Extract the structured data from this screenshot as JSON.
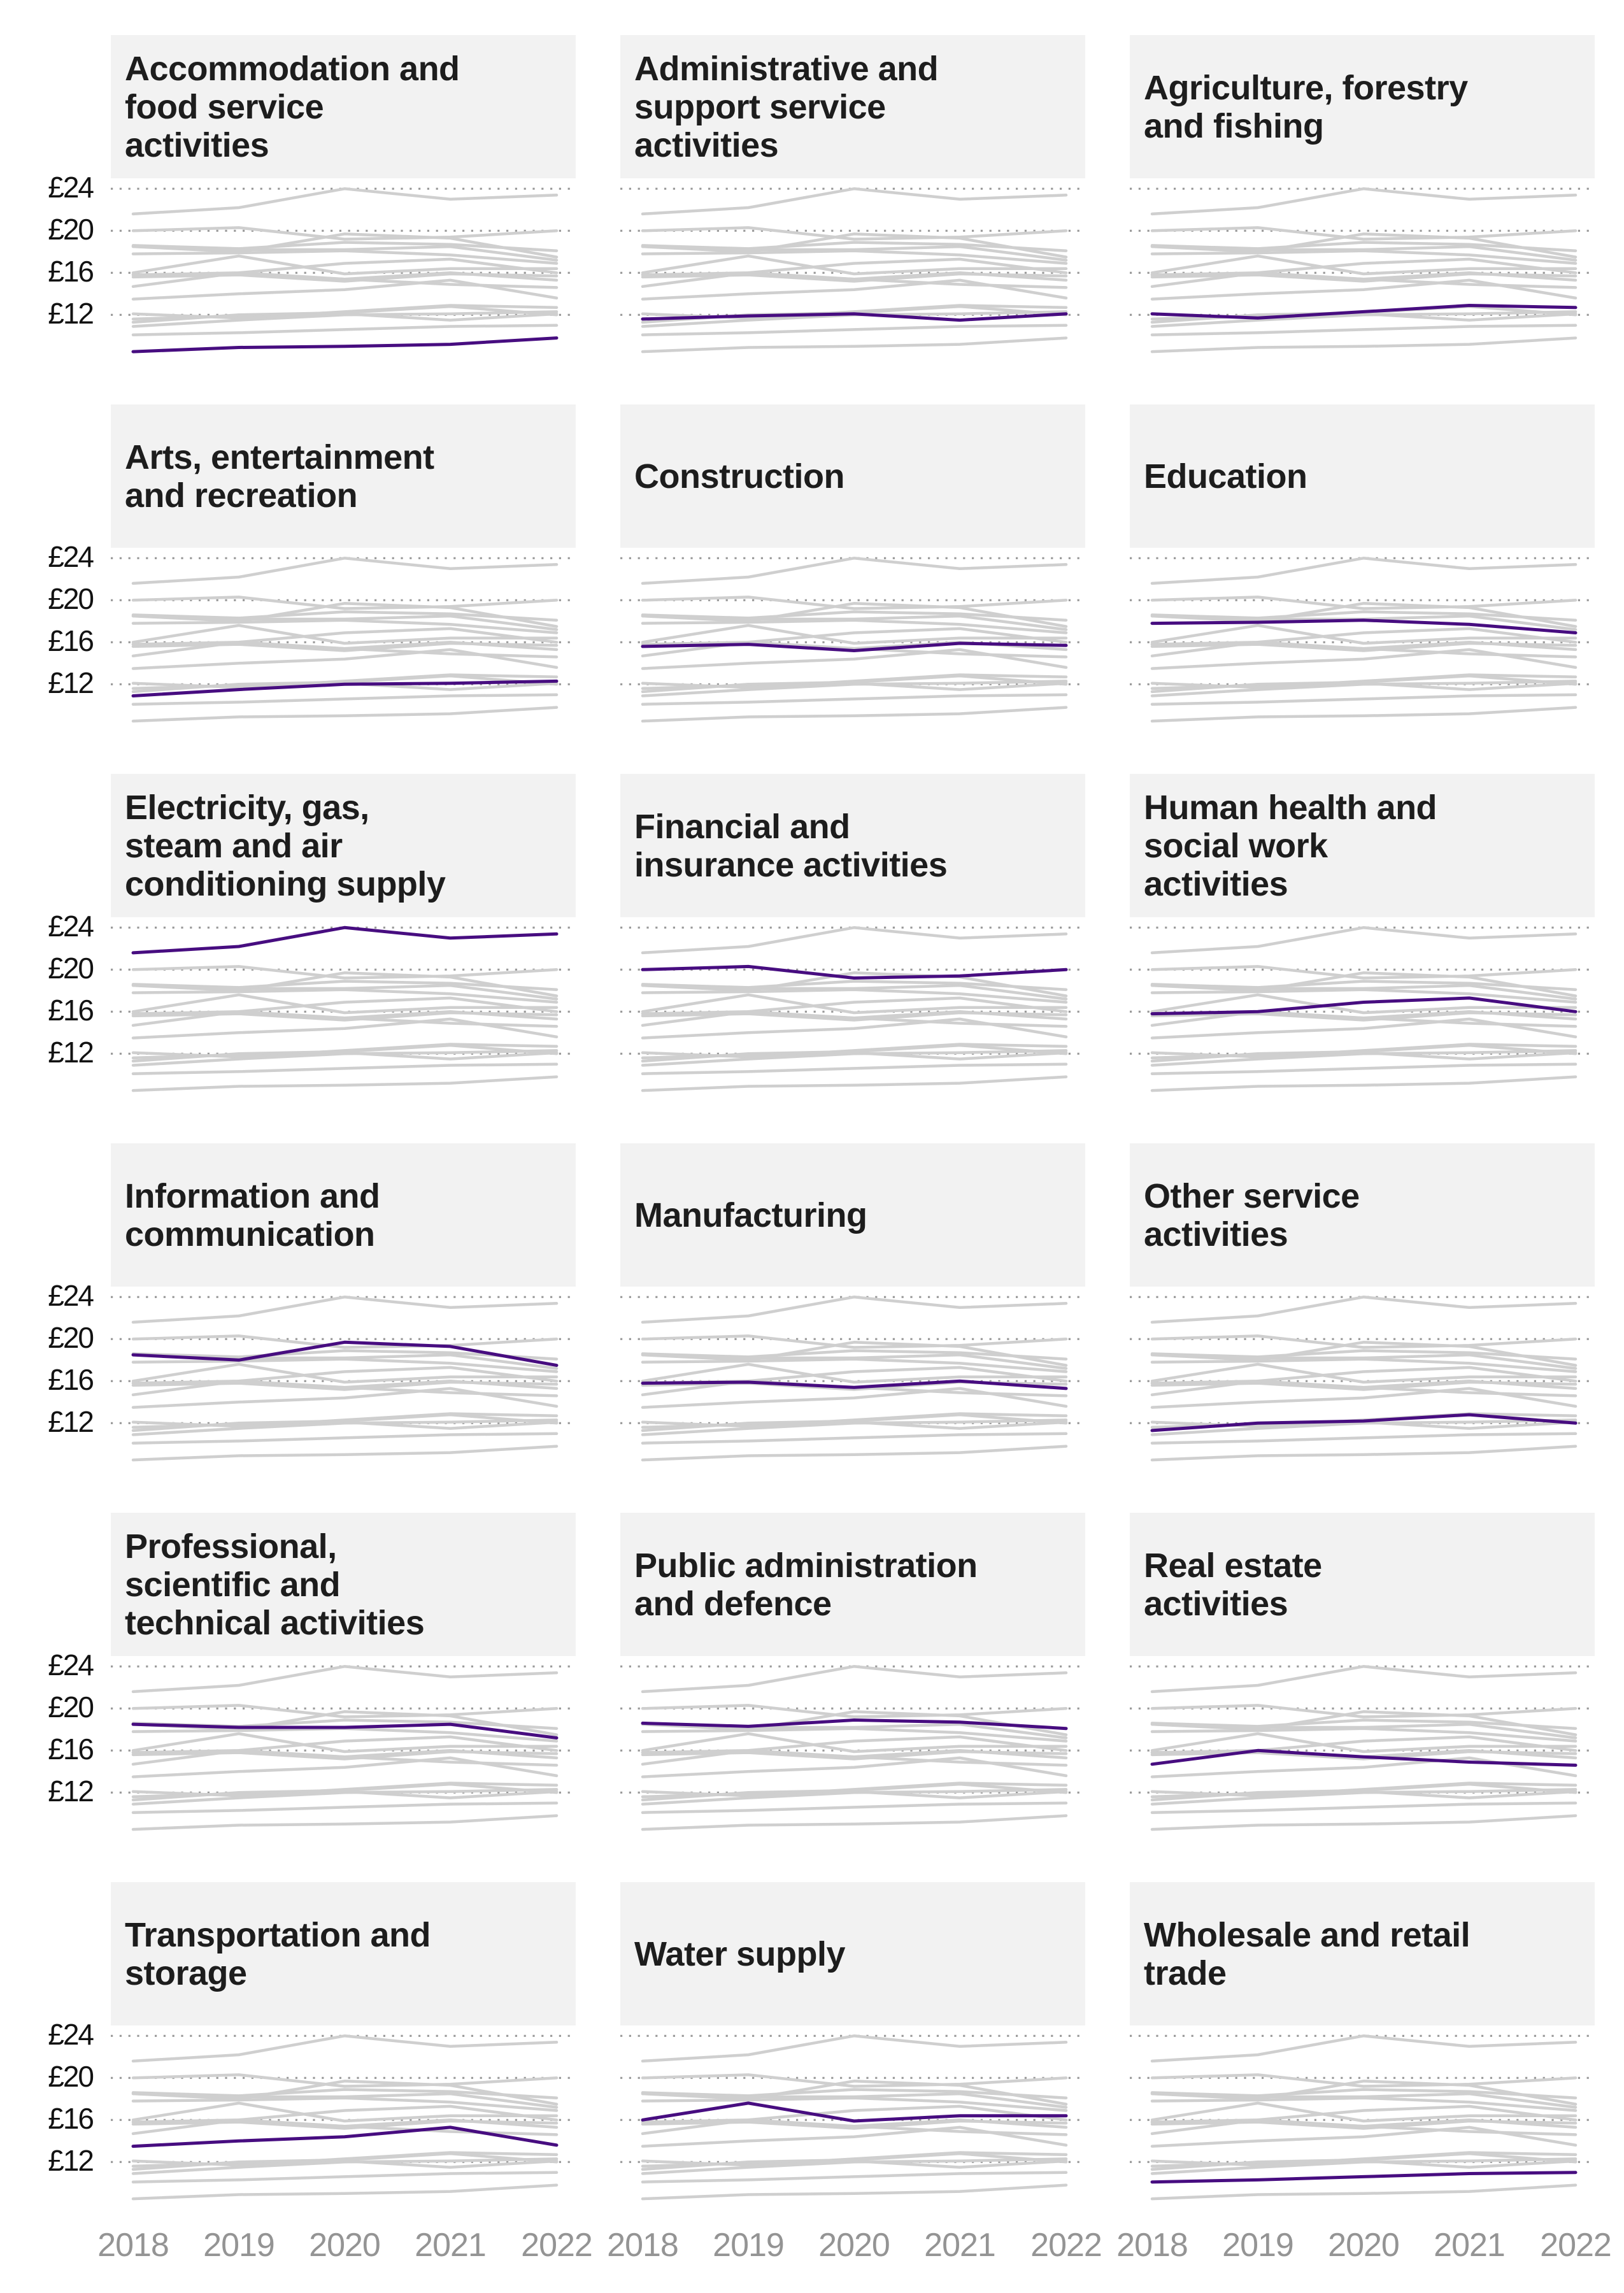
{
  "page": {
    "background": "#ffffff"
  },
  "chart_data": {
    "type": "line",
    "layout": "small_multiples_grid_3_columns_6_rows",
    "description": "Median hourly pay by industry, each panel highlights one industry in purple against all other industries in grey",
    "x": [
      2018,
      2019,
      2020,
      2021,
      2022
    ],
    "x_tick_labels": [
      "2018",
      "2019",
      "2020",
      "2021",
      "2022"
    ],
    "y_tick_labels": [
      "£24",
      "£20",
      "£16",
      "£12"
    ],
    "y_gridline_values": [
      24,
      20,
      16,
      12
    ],
    "ylim": [
      7.1,
      25.9
    ],
    "unit": "£ per hour",
    "grid": "dotted horizontal gridlines",
    "legend": "none",
    "colors": {
      "highlight": "#470d80",
      "context": "#cfcfcf",
      "gridline": "#9a9a9a",
      "panel_title_bg": "#f2f2f2",
      "title_text": "#1d1d1d",
      "y_label_text": "#121212",
      "x_label_text": "#949494"
    },
    "panels": [
      {
        "name": "Accommodation and food service activities",
        "title": "Accommodation and\nfood service\nactivities",
        "values": [
          8.5,
          8.9,
          9.0,
          9.2,
          9.8
        ]
      },
      {
        "name": "Administrative and support service activities",
        "title": "Administrative and\nsupport service\nactivities",
        "values": [
          11.6,
          11.9,
          12.1,
          11.5,
          12.1
        ]
      },
      {
        "name": "Agriculture, forestry and fishing",
        "title": "Agriculture, forestry\nand fishing",
        "values": [
          12.1,
          11.7,
          12.3,
          12.9,
          12.7
        ]
      },
      {
        "name": "Arts, entertainment and recreation",
        "title": "Arts, entertainment\nand recreation",
        "values": [
          10.9,
          11.5,
          12.0,
          12.1,
          12.3
        ]
      },
      {
        "name": "Construction",
        "title": "Construction",
        "values": [
          15.6,
          15.8,
          15.2,
          15.9,
          15.7
        ]
      },
      {
        "name": "Education",
        "title": "Education",
        "values": [
          17.8,
          17.9,
          18.1,
          17.7,
          16.9
        ]
      },
      {
        "name": "Electricity, gas, steam and air conditioning supply",
        "title": "Electricity, gas,\nsteam and air\nconditioning supply",
        "values": [
          21.6,
          22.2,
          24.0,
          23.0,
          23.4
        ]
      },
      {
        "name": "Financial and insurance activities",
        "title": "Financial and\ninsurance activities",
        "values": [
          20.0,
          20.3,
          19.2,
          19.4,
          20.0
        ]
      },
      {
        "name": "Human health and social work activities",
        "title": "Human health and\nsocial work\nactivities",
        "values": [
          15.8,
          16.0,
          16.9,
          17.3,
          16.0
        ]
      },
      {
        "name": "Information and communication",
        "title": "Information and\ncommunication",
        "values": [
          18.5,
          18.0,
          19.7,
          19.3,
          17.5
        ]
      },
      {
        "name": "Manufacturing",
        "title": "Manufacturing",
        "values": [
          15.8,
          15.9,
          15.4,
          16.0,
          15.3
        ]
      },
      {
        "name": "Other service activities",
        "title": "Other service\nactivities",
        "values": [
          11.3,
          12.0,
          12.2,
          12.8,
          12.0
        ]
      },
      {
        "name": "Professional, scientific and technical activities",
        "title": "Professional,\nscientific and\ntechnical activities",
        "values": [
          18.5,
          18.2,
          18.2,
          18.5,
          17.2
        ]
      },
      {
        "name": "Public administration and defence",
        "title": "Public administration\nand defence",
        "values": [
          18.6,
          18.3,
          18.9,
          18.7,
          18.1
        ]
      },
      {
        "name": "Real estate activities",
        "title": "Real estate\nactivities",
        "values": [
          14.7,
          16.0,
          15.4,
          14.9,
          14.6
        ]
      },
      {
        "name": "Transportation and storage",
        "title": "Transportation and\nstorage",
        "values": [
          13.5,
          14.0,
          14.4,
          15.3,
          13.6
        ]
      },
      {
        "name": "Water supply",
        "title": "Water supply",
        "values": [
          16.0,
          17.6,
          15.9,
          16.4,
          16.4
        ]
      },
      {
        "name": "Wholesale and retail trade",
        "title": "Wholesale and retail\ntrade",
        "values": [
          10.1,
          10.3,
          10.6,
          10.9,
          11.0
        ]
      }
    ]
  }
}
